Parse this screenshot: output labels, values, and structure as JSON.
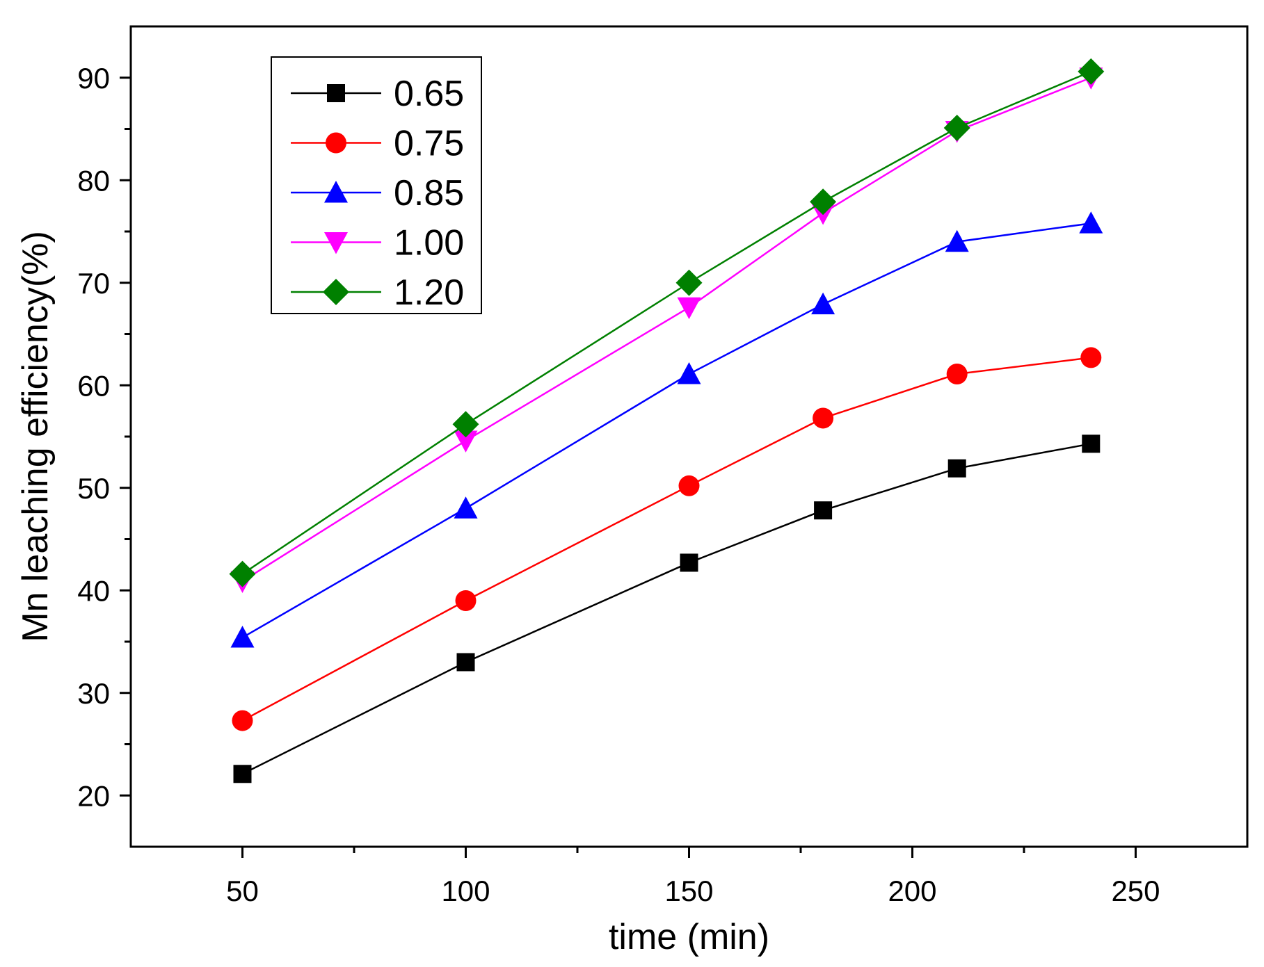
{
  "chart_data": {
    "type": "line",
    "title": "",
    "xlabel": "time (min)",
    "ylabel": "Mn leaching efficiency(%)",
    "xlim": [
      25,
      275
    ],
    "ylim": [
      15,
      95
    ],
    "xticks": [
      50,
      100,
      150,
      200,
      250
    ],
    "yticks": [
      20,
      30,
      40,
      50,
      60,
      70,
      80,
      90
    ],
    "x": [
      50,
      100,
      150,
      180,
      210,
      240
    ],
    "legend_position": "top-left",
    "grid": false,
    "series": [
      {
        "name": "0.65",
        "color": "#000000",
        "marker": "square",
        "values": [
          22.1,
          33.0,
          42.7,
          47.8,
          51.9,
          54.3
        ]
      },
      {
        "name": "0.75",
        "color": "#ff0000",
        "marker": "circle",
        "values": [
          27.3,
          39.0,
          50.2,
          56.8,
          61.1,
          62.7
        ]
      },
      {
        "name": "0.85",
        "color": "#0000ff",
        "marker": "triangle-up",
        "values": [
          35.4,
          48.0,
          61.1,
          67.9,
          74.0,
          75.8
        ]
      },
      {
        "name": "1.00",
        "color": "#ff00ff",
        "marker": "triangle-down",
        "values": [
          40.9,
          54.6,
          67.6,
          76.8,
          84.8,
          90.0
        ]
      },
      {
        "name": "1.20",
        "color": "#008000",
        "marker": "diamond",
        "values": [
          41.6,
          56.2,
          70.0,
          77.9,
          85.1,
          90.6
        ]
      }
    ]
  }
}
